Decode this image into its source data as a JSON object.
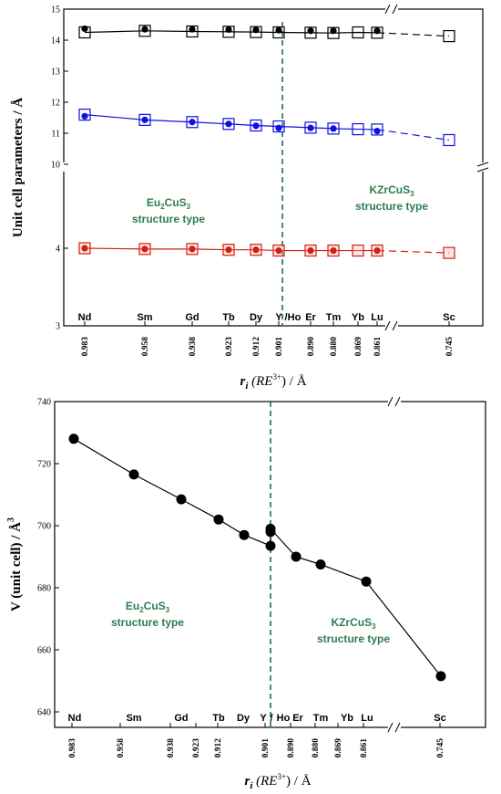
{
  "chart_data": [
    {
      "type": "line",
      "ylabel": "Unit cell parameters / Å",
      "xlabel_main": "r",
      "xlabel_sub": "i",
      "xlabel_rest": "(RE",
      "xlabel_sup": "3+",
      "xlabel_end": ") / Å",
      "elements": [
        "Nd",
        "Sm",
        "Gd",
        "Tb",
        "Dy",
        "Y",
        "Ho",
        "Er",
        "Tm",
        "Yb",
        "Lu",
        "Sc"
      ],
      "radii": [
        "0.983",
        "0.958",
        "0.938",
        "0.923",
        "0.912",
        "0.901",
        "0.890",
        "0.880",
        "0.869",
        "0.861",
        "0.745"
      ],
      "ytick_upper": [
        "15",
        "14",
        "13",
        "12",
        "11",
        "10"
      ],
      "ytick_lower": [
        "4",
        "3"
      ],
      "annotations": {
        "left_line1": "Eu",
        "left_sub": "2",
        "left_mid": "CuS",
        "left_sub2": "3",
        "left_line2": "structure type",
        "right_line1": "KZrCuS",
        "right_sub": "3",
        "right_line2": "structure type"
      },
      "colors": {
        "a": "#000000",
        "b": "#1010e0",
        "c": "#d02010",
        "divider": "#1f6f4a"
      },
      "series": [
        {
          "key": "a",
          "x": [
            0.983,
            0.958,
            0.938,
            0.923,
            0.912,
            0.901,
            0.89,
            0.88,
            0.869,
            0.861,
            0.745
          ],
          "filled": [
            14.37,
            14.35,
            14.35,
            14.34,
            14.33,
            14.32,
            14.3,
            14.3,
            null,
            14.3,
            null
          ],
          "open": [
            14.25,
            14.3,
            14.28,
            14.27,
            14.26,
            14.25,
            14.24,
            14.23,
            14.25,
            14.24,
            14.13
          ]
        },
        {
          "key": "b",
          "x": [
            0.983,
            0.958,
            0.938,
            0.923,
            0.912,
            0.901,
            0.89,
            0.88,
            0.869,
            0.861,
            0.745
          ],
          "filled": [
            11.55,
            11.43,
            11.36,
            11.3,
            11.24,
            11.17,
            11.17,
            11.15,
            null,
            11.07,
            null
          ],
          "open": [
            11.6,
            11.43,
            11.36,
            11.3,
            11.25,
            11.22,
            11.18,
            11.15,
            11.13,
            11.12,
            10.78
          ]
        },
        {
          "key": "c",
          "x": [
            0.983,
            0.958,
            0.938,
            0.923,
            0.912,
            0.901,
            0.89,
            0.88,
            0.869,
            0.861,
            0.745
          ],
          "filled": [
            4.0,
            3.99,
            3.99,
            3.98,
            3.98,
            3.97,
            3.97,
            3.97,
            null,
            3.97,
            null
          ],
          "open": [
            4.0,
            3.99,
            3.99,
            3.98,
            3.98,
            3.97,
            3.97,
            3.97,
            3.97,
            3.97,
            3.94
          ]
        }
      ]
    },
    {
      "type": "line",
      "ylabel": "V (unit cell) / Å",
      "ylabel_sup": "3",
      "xlabel_main": "r",
      "xlabel_sub": "i",
      "xlabel_rest": "(RE",
      "xlabel_sup": "3+",
      "xlabel_end": ") / Å",
      "ylim": [
        635,
        740
      ],
      "yticks": [
        "740",
        "720",
        "700",
        "680",
        "660",
        "640"
      ],
      "elements": [
        "Nd",
        "Sm",
        "Gd",
        "Tb",
        "Dy",
        "Y",
        "Ho",
        "Er",
        "Tm",
        "Yb",
        "Lu",
        "Sc"
      ],
      "radii": [
        "0.983",
        "0.958",
        "0.938",
        "0.923",
        "0.912",
        "0.901",
        "0.890",
        "0.880",
        "0.869",
        "0.861",
        "0.745"
      ],
      "annotations": {
        "left_line1": "Eu",
        "left_sub": "2",
        "left_mid": "CuS",
        "left_sub2": "3",
        "left_line2": "structure type",
        "right_line1": "KZrCuS",
        "right_sub": "3",
        "right_line2": "structure type"
      },
      "x": [
        0.983,
        0.958,
        0.938,
        0.923,
        0.912,
        0.901,
        0.901,
        0.901,
        0.89,
        0.88,
        0.861,
        0.745
      ],
      "values": [
        728,
        716.5,
        708.5,
        702,
        697,
        693.5,
        698,
        699,
        690,
        687.5,
        682,
        651.5
      ]
    }
  ]
}
